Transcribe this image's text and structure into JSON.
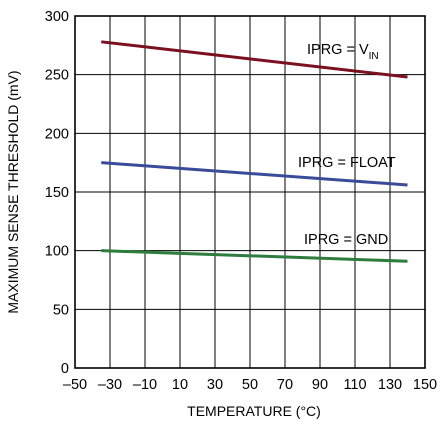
{
  "chart_data": {
    "type": "line",
    "title": "",
    "xlabel": "TEMPERATURE (°C)",
    "ylabel": "MAXIMUM SENSE THRESHOLD (mV)",
    "xlim": [
      -50,
      150
    ],
    "ylim": [
      0,
      300
    ],
    "xticks": [
      "–50",
      "–30",
      "–10",
      "10",
      "30",
      "50",
      "70",
      "90",
      "110",
      "130",
      "150"
    ],
    "yticks": [
      "0",
      "50",
      "100",
      "150",
      "200",
      "250",
      "300"
    ],
    "grid": true,
    "series": [
      {
        "name": "IPRG = V",
        "name_sub": "IN",
        "color": "#7a1020",
        "x": [
          -35,
          140
        ],
        "y": [
          278,
          248
        ]
      },
      {
        "name": "IPRG = FLOAT",
        "color": "#3a4b9a",
        "x": [
          -35,
          140
        ],
        "y": [
          175,
          156
        ]
      },
      {
        "name": "IPRG = GND",
        "color": "#2e7d3e",
        "x": [
          -35,
          140
        ],
        "y": [
          100,
          91
        ]
      }
    ]
  }
}
